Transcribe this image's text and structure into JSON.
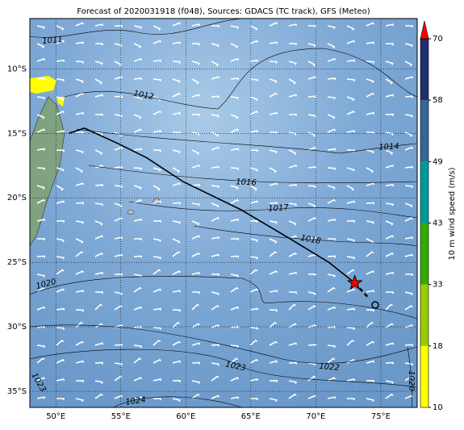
{
  "map": {
    "title": "Forecast of 2020031918 (f048), Sources: GDACS (TC track), GFS (Meteo)",
    "lonlim": [
      48,
      77.8
    ],
    "latlim": [
      -36.25,
      -6.1
    ],
    "xticks": [
      {
        "value": 50,
        "label": "50°E"
      },
      {
        "value": 55,
        "label": "55°E"
      },
      {
        "value": 60,
        "label": "60°E"
      },
      {
        "value": 65,
        "label": "65°E"
      },
      {
        "value": 70,
        "label": "70°E"
      },
      {
        "value": 75,
        "label": "75°E"
      }
    ],
    "yticks": [
      {
        "value": -10,
        "label": "10°S"
      },
      {
        "value": -15,
        "label": "15°S"
      },
      {
        "value": -20,
        "label": "20°S"
      },
      {
        "value": -25,
        "label": "25°S"
      },
      {
        "value": -30,
        "label": "30°S"
      },
      {
        "value": -35,
        "label": "35°S"
      }
    ],
    "track": {
      "lon": [
        51.0,
        52.2,
        54.8,
        57.0,
        59.8,
        64.2,
        67.9,
        71.0,
        73.0
      ],
      "lat": [
        -15.0,
        -14.6,
        -15.8,
        -16.9,
        -18.75,
        -20.9,
        -23.1,
        -25.0,
        -26.6
      ]
    },
    "forecast_track": {
      "lon": [
        73.0,
        74.0
      ],
      "lat": [
        -26.6,
        -27.7
      ]
    },
    "storm_position": {
      "lon": 73.0,
      "lat": -26.6
    },
    "isobar_labels": [
      "1011",
      "1012",
      "1014",
      "1016",
      "1017",
      "1018",
      "1020",
      "1022",
      "1023",
      "1023",
      "1024",
      "1020"
    ],
    "colorbar": {
      "label": "10 m wind speed (m/s)",
      "ticks": [
        10,
        18,
        33,
        43,
        49,
        58,
        70
      ],
      "colors": [
        "#ffff00",
        "#99cc00",
        "#33aa00",
        "#009999",
        "#336699",
        "#1f2f6f"
      ],
      "extend_color": "#ff0000"
    }
  }
}
